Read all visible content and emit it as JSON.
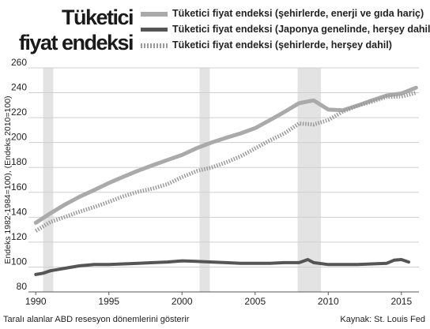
{
  "header": {
    "title_line1": "Tüketici",
    "title_line2": "fiyat endeksi"
  },
  "footer": {
    "note": "Taralı alanlar ABD resesyon dönemlerini gösterir",
    "source": "Kaynak: St. Louis Fed"
  },
  "colors": {
    "series_excl_food_energy": "#aaaaaa",
    "series_japan": "#555555",
    "series_all_items": "#9a9a9a",
    "recession_band": "#e3e3e3",
    "grid": "#cfcfcf"
  },
  "chart_data": {
    "type": "line",
    "title": "Tüketici fiyat endeksi",
    "ylabel": "Endeks 1982-1984=100), (Endeks 2010=100)",
    "xlim": [
      1989.5,
      2016.2
    ],
    "ylim": [
      80,
      260
    ],
    "x_ticks": [
      "1990",
      "1995",
      "2000",
      "2005",
      "2010",
      "2015"
    ],
    "y_ticks": [
      "80",
      "100",
      "120",
      "140",
      "160",
      "180",
      "200",
      "220",
      "240",
      "260"
    ],
    "grid": "horizontal",
    "legend_position": "top",
    "recessions": [
      {
        "start": 1990.5,
        "end": 1991.2
      },
      {
        "start": 2001.2,
        "end": 2001.9
      },
      {
        "start": 2007.9,
        "end": 2009.5
      }
    ],
    "series": [
      {
        "name": "Tüketici fiyat endeksi (şehirlerde, enerji ve gıda hariç)",
        "style": "solid-thick",
        "x": [
          1990,
          1991,
          1992,
          1993,
          1994,
          1995,
          1996,
          1997,
          1998,
          1999,
          2000,
          2001,
          2002,
          2003,
          2004,
          2005,
          2006,
          2007,
          2008,
          2009,
          2010,
          2011,
          2012,
          2013,
          2014,
          2015,
          2016
        ],
        "values": [
          135.5,
          143.1,
          150.2,
          156.5,
          161.9,
          167.5,
          172.6,
          177.4,
          181.8,
          186.0,
          190.0,
          195.5,
          199.9,
          203.8,
          207.3,
          211.6,
          218.0,
          224.6,
          231.6,
          233.9,
          226.5,
          225.9,
          229.7,
          233.9,
          237.8,
          239.4,
          244.0
        ]
      },
      {
        "name": "Tüketici fiyat endeksi (Japonya genelinde, herşey dahil)",
        "style": "solid-dark",
        "x": [
          1990,
          1990.5,
          1991,
          1992,
          1993,
          1994,
          1995,
          1996,
          1997,
          1998,
          1999,
          2000,
          2001,
          2002,
          2003,
          2004,
          2005,
          2006,
          2007,
          2008,
          2008.6,
          2009,
          2010,
          2011,
          2012,
          2013,
          2014,
          2014.5,
          2015,
          2015.5
        ],
        "values": [
          94,
          95,
          97,
          99,
          101,
          102,
          102,
          102.5,
          103,
          103.5,
          104,
          105,
          104.5,
          104,
          103.5,
          103,
          103,
          103,
          103.5,
          103.5,
          106,
          103.5,
          102,
          102,
          102,
          102.5,
          103,
          105.5,
          106,
          104
        ]
      },
      {
        "name": "Tüketici fiyat endeksi (şehirlerde, herşey dahil)",
        "style": "dotted",
        "x": [
          1990,
          1991,
          1992,
          1993,
          1994,
          1995,
          1996,
          1997,
          1998,
          1999,
          2000,
          2001,
          2002,
          2003,
          2004,
          2005,
          2006,
          2007,
          2008,
          2009,
          2010,
          2011,
          2012,
          2013,
          2014,
          2015,
          2016
        ],
        "values": [
          129.0,
          136.2,
          140.3,
          144.5,
          148.2,
          152.4,
          156.9,
          160.5,
          163.0,
          166.6,
          172.2,
          177.1,
          179.9,
          184.0,
          188.9,
          195.3,
          201.6,
          207.3,
          215.3,
          214.5,
          218.1,
          224.9,
          229.6,
          232.9,
          236.7,
          237.0,
          240.0
        ]
      }
    ]
  }
}
